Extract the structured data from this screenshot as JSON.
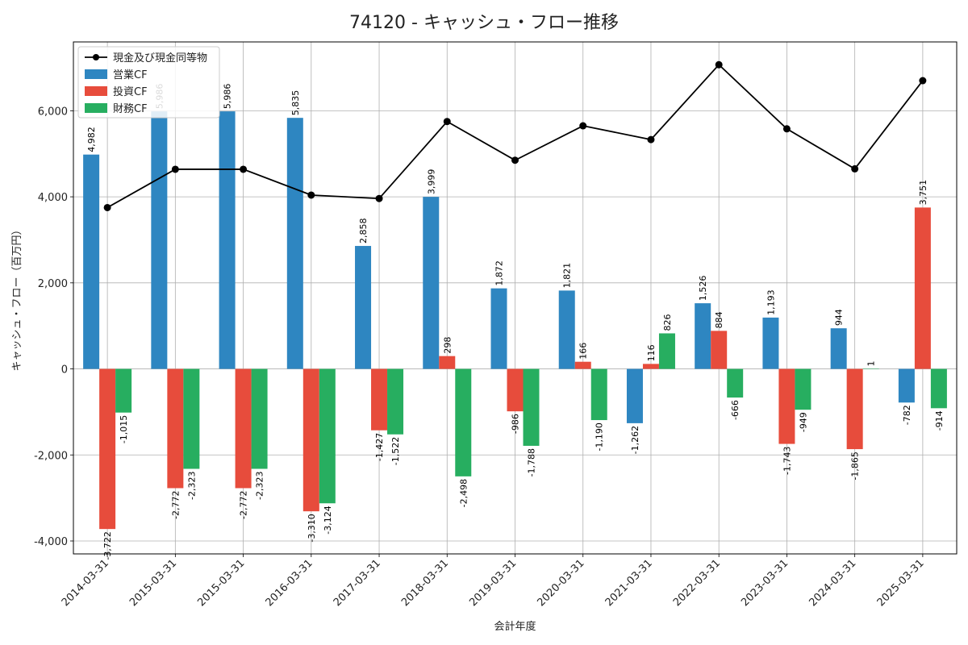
{
  "chart_data": {
    "type": "bar",
    "title": "74120 - キャッシュ・フロー推移",
    "xlabel": "会計年度",
    "ylabel": "キャッシュ・フロー（百万円）",
    "categories": [
      "2014-03-31",
      "2015-03-31",
      "2015-03-31",
      "2016-03-31",
      "2017-03-31",
      "2018-03-31",
      "2019-03-31",
      "2020-03-31",
      "2021-03-31",
      "2022-03-31",
      "2023-03-31",
      "2024-03-31",
      "2025-03-31"
    ],
    "ylim": [
      -4300,
      7600
    ],
    "yticks": [
      -4000,
      -2000,
      0,
      2000,
      4000,
      6000
    ],
    "ytick_labels": [
      "-4,000",
      "-2,000",
      "0",
      "2,000",
      "4,000",
      "6,000"
    ],
    "grid": true,
    "legend_position": "top-left",
    "series": [
      {
        "name": "営業CF",
        "kind": "bar",
        "color": "#2e86c1",
        "values": [
          4982,
          5986,
          5986,
          5835,
          2858,
          3999,
          1872,
          1821,
          -1262,
          1526,
          1193,
          944,
          -782
        ],
        "labels": [
          "4,982",
          "5,986",
          "5,986",
          "5,835",
          "2,858",
          "3,999",
          "1,872",
          "1,821",
          "-1,262",
          "1,526",
          "1,193",
          "944",
          "-782"
        ]
      },
      {
        "name": "投資CF",
        "kind": "bar",
        "color": "#e74c3c",
        "values": [
          -3722,
          -2772,
          -2772,
          -3310,
          -1427,
          298,
          -986,
          166,
          116,
          884,
          -1743,
          -1865,
          3751
        ],
        "labels": [
          "-3,722",
          "-2,772",
          "-2,772",
          "-3,310",
          "-1,427",
          "298",
          "-986",
          "166",
          "116",
          "884",
          "-1,743",
          "-1,865",
          "3,751"
        ]
      },
      {
        "name": "財務CF",
        "kind": "bar",
        "color": "#27ae60",
        "values": [
          -1015,
          -2323,
          -2323,
          -3124,
          -1522,
          -2498,
          -1788,
          -1190,
          826,
          -666,
          -949,
          1,
          -914
        ],
        "labels": [
          "-1,015",
          "-2,323",
          "-2,323",
          "-3,124",
          "-1,522",
          "-2,498",
          "-1,788",
          "-1,190",
          "826",
          "-666",
          "-949",
          "1",
          "-914"
        ]
      },
      {
        "name": "現金及び現金同等物",
        "kind": "line",
        "color": "#000000",
        "values": [
          3750,
          4640,
          4640,
          4040,
          3960,
          5750,
          4850,
          5650,
          5330,
          7070,
          5580,
          4650,
          6700
        ]
      }
    ]
  }
}
